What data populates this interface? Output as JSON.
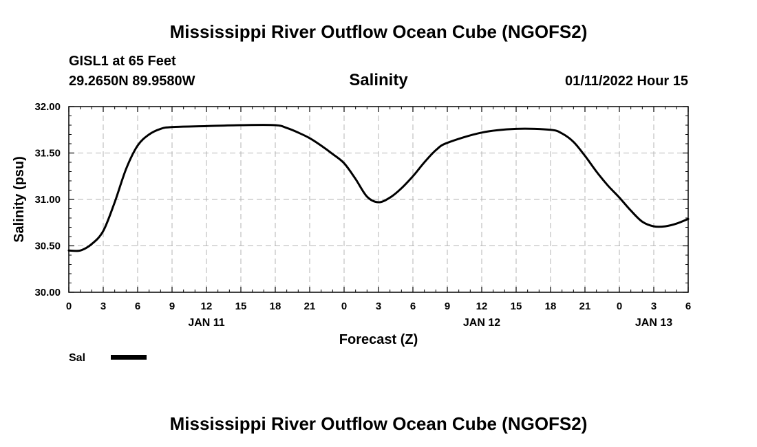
{
  "header": {
    "title": "Mississippi River Outflow Ocean Cube (NGOFS2)",
    "station": "GISL1 at 65 Feet",
    "location": "29.2650N  89.9580W",
    "timestamp": "01/11/2022 Hour 15"
  },
  "footer": {
    "title": "Mississippi River Outflow Ocean Cube (NGOFS2)"
  },
  "legend_label": "Sal",
  "chart_data": {
    "type": "line",
    "title": "Salinity",
    "xlabel": "Forecast (Z)",
    "ylabel": "Salinity (psu)",
    "xlim": [
      0,
      54
    ],
    "ylim": [
      30.0,
      32.0
    ],
    "yticks": [
      "30.00",
      "30.50",
      "31.00",
      "31.50",
      "32.00"
    ],
    "xticks": [
      "0",
      "3",
      "6",
      "9",
      "12",
      "15",
      "18",
      "21",
      "0",
      "3",
      "6",
      "9",
      "12",
      "15",
      "18",
      "21",
      "0",
      "3",
      "6"
    ],
    "date_labels": [
      {
        "label": "JAN 11",
        "at": 12
      },
      {
        "label": "JAN 12",
        "at": 36
      },
      {
        "label": "JAN 13",
        "at": 51
      }
    ],
    "grid": true,
    "series": [
      {
        "name": "Sal",
        "color": "#000000",
        "x": [
          0,
          1,
          2,
          3,
          4,
          5,
          6,
          7,
          8,
          9,
          12,
          15,
          18,
          19,
          20,
          21,
          22,
          23,
          24,
          25,
          26,
          27,
          28,
          29,
          30,
          31,
          32,
          33,
          36,
          39,
          42,
          43,
          44,
          45,
          46,
          47,
          48,
          49,
          50,
          51,
          52,
          53,
          54
        ],
        "y": [
          30.45,
          30.45,
          30.52,
          30.66,
          30.97,
          31.33,
          31.58,
          31.7,
          31.76,
          31.78,
          31.79,
          31.8,
          31.8,
          31.77,
          31.72,
          31.66,
          31.58,
          31.49,
          31.39,
          31.22,
          31.03,
          30.97,
          31.02,
          31.12,
          31.25,
          31.4,
          31.53,
          31.61,
          31.72,
          31.76,
          31.75,
          31.71,
          31.62,
          31.47,
          31.3,
          31.15,
          31.02,
          30.88,
          30.76,
          30.71,
          30.71,
          30.74,
          30.79
        ]
      }
    ]
  }
}
